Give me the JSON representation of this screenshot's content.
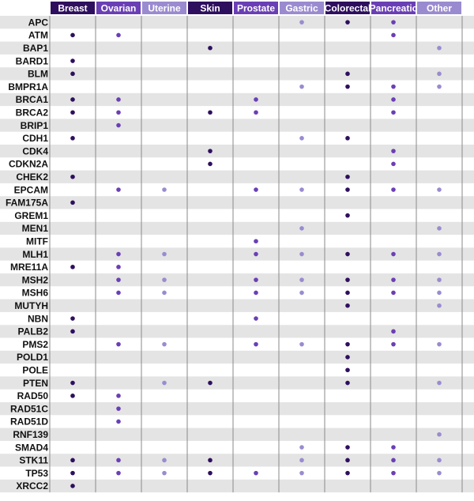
{
  "chart_data": {
    "type": "table",
    "columns": [
      {
        "name": "Breast",
        "color": "#2e0f5e"
      },
      {
        "name": "Ovarian",
        "color": "#6a3fb5"
      },
      {
        "name": "Uterine",
        "color": "#9a8bd0"
      },
      {
        "name": "Skin",
        "color": "#2e0f5e"
      },
      {
        "name": "Prostate",
        "color": "#6a3fb5"
      },
      {
        "name": "Gastric",
        "color": "#9a8bd0"
      },
      {
        "name": "Colorectal",
        "color": "#2e0f5e"
      },
      {
        "name": "Pancreatic",
        "color": "#6a3fb5"
      },
      {
        "name": "Other",
        "color": "#9a8bd0"
      }
    ],
    "rows": [
      {
        "gene": "APC",
        "cancers": [
          "Gastric",
          "Colorectal",
          "Pancreatic"
        ]
      },
      {
        "gene": "ATM",
        "cancers": [
          "Breast",
          "Ovarian",
          "Pancreatic"
        ]
      },
      {
        "gene": "BAP1",
        "cancers": [
          "Skin",
          "Other"
        ]
      },
      {
        "gene": "BARD1",
        "cancers": [
          "Breast"
        ]
      },
      {
        "gene": "BLM",
        "cancers": [
          "Breast",
          "Colorectal",
          "Other"
        ]
      },
      {
        "gene": "BMPR1A",
        "cancers": [
          "Gastric",
          "Colorectal",
          "Pancreatic",
          "Other"
        ]
      },
      {
        "gene": "BRCA1",
        "cancers": [
          "Breast",
          "Ovarian",
          "Prostate",
          "Pancreatic"
        ]
      },
      {
        "gene": "BRCA2",
        "cancers": [
          "Breast",
          "Ovarian",
          "Skin",
          "Prostate",
          "Pancreatic"
        ]
      },
      {
        "gene": "BRIP1",
        "cancers": [
          "Ovarian"
        ]
      },
      {
        "gene": "CDH1",
        "cancers": [
          "Breast",
          "Gastric",
          "Colorectal"
        ]
      },
      {
        "gene": "CDK4",
        "cancers": [
          "Skin",
          "Pancreatic"
        ]
      },
      {
        "gene": "CDKN2A",
        "cancers": [
          "Skin",
          "Pancreatic"
        ]
      },
      {
        "gene": "CHEK2",
        "cancers": [
          "Breast",
          "Colorectal"
        ]
      },
      {
        "gene": "EPCAM",
        "cancers": [
          "Ovarian",
          "Uterine",
          "Prostate",
          "Gastric",
          "Colorectal",
          "Pancreatic",
          "Other"
        ]
      },
      {
        "gene": "FAM175A",
        "cancers": [
          "Breast"
        ]
      },
      {
        "gene": "GREM1",
        "cancers": [
          "Colorectal"
        ]
      },
      {
        "gene": "MEN1",
        "cancers": [
          "Gastric",
          "Other"
        ]
      },
      {
        "gene": "MITF",
        "cancers": [
          "Prostate"
        ]
      },
      {
        "gene": "MLH1",
        "cancers": [
          "Ovarian",
          "Uterine",
          "Prostate",
          "Gastric",
          "Colorectal",
          "Pancreatic",
          "Other"
        ]
      },
      {
        "gene": "MRE11A",
        "cancers": [
          "Breast",
          "Ovarian"
        ]
      },
      {
        "gene": "MSH2",
        "cancers": [
          "Ovarian",
          "Uterine",
          "Prostate",
          "Gastric",
          "Colorectal",
          "Pancreatic",
          "Other"
        ]
      },
      {
        "gene": "MSH6",
        "cancers": [
          "Ovarian",
          "Uterine",
          "Prostate",
          "Gastric",
          "Colorectal",
          "Pancreatic",
          "Other"
        ]
      },
      {
        "gene": "MUTYH",
        "cancers": [
          "Colorectal",
          "Other"
        ]
      },
      {
        "gene": "NBN",
        "cancers": [
          "Breast",
          "Prostate"
        ]
      },
      {
        "gene": "PALB2",
        "cancers": [
          "Breast",
          "Pancreatic"
        ]
      },
      {
        "gene": "PMS2",
        "cancers": [
          "Ovarian",
          "Uterine",
          "Prostate",
          "Gastric",
          "Colorectal",
          "Pancreatic",
          "Other"
        ]
      },
      {
        "gene": "POLD1",
        "cancers": [
          "Colorectal"
        ]
      },
      {
        "gene": "POLE",
        "cancers": [
          "Colorectal"
        ]
      },
      {
        "gene": "PTEN",
        "cancers": [
          "Breast",
          "Uterine",
          "Skin",
          "Colorectal",
          "Other"
        ]
      },
      {
        "gene": "RAD50",
        "cancers": [
          "Breast",
          "Ovarian"
        ]
      },
      {
        "gene": "RAD51C",
        "cancers": [
          "Ovarian"
        ]
      },
      {
        "gene": "RAD51D",
        "cancers": [
          "Ovarian"
        ]
      },
      {
        "gene": "RNF139",
        "cancers": [
          "Other"
        ]
      },
      {
        "gene": "SMAD4",
        "cancers": [
          "Gastric",
          "Colorectal",
          "Pancreatic"
        ]
      },
      {
        "gene": "STK11",
        "cancers": [
          "Breast",
          "Ovarian",
          "Uterine",
          "Skin",
          "Gastric",
          "Colorectal",
          "Pancreatic",
          "Other"
        ]
      },
      {
        "gene": "TP53",
        "cancers": [
          "Breast",
          "Ovarian",
          "Uterine",
          "Skin",
          "Prostate",
          "Gastric",
          "Colorectal",
          "Pancreatic",
          "Other"
        ]
      },
      {
        "gene": "XRCC2",
        "cancers": [
          "Breast"
        ]
      }
    ],
    "row_shading": "alternating-gray",
    "grid": true
  }
}
